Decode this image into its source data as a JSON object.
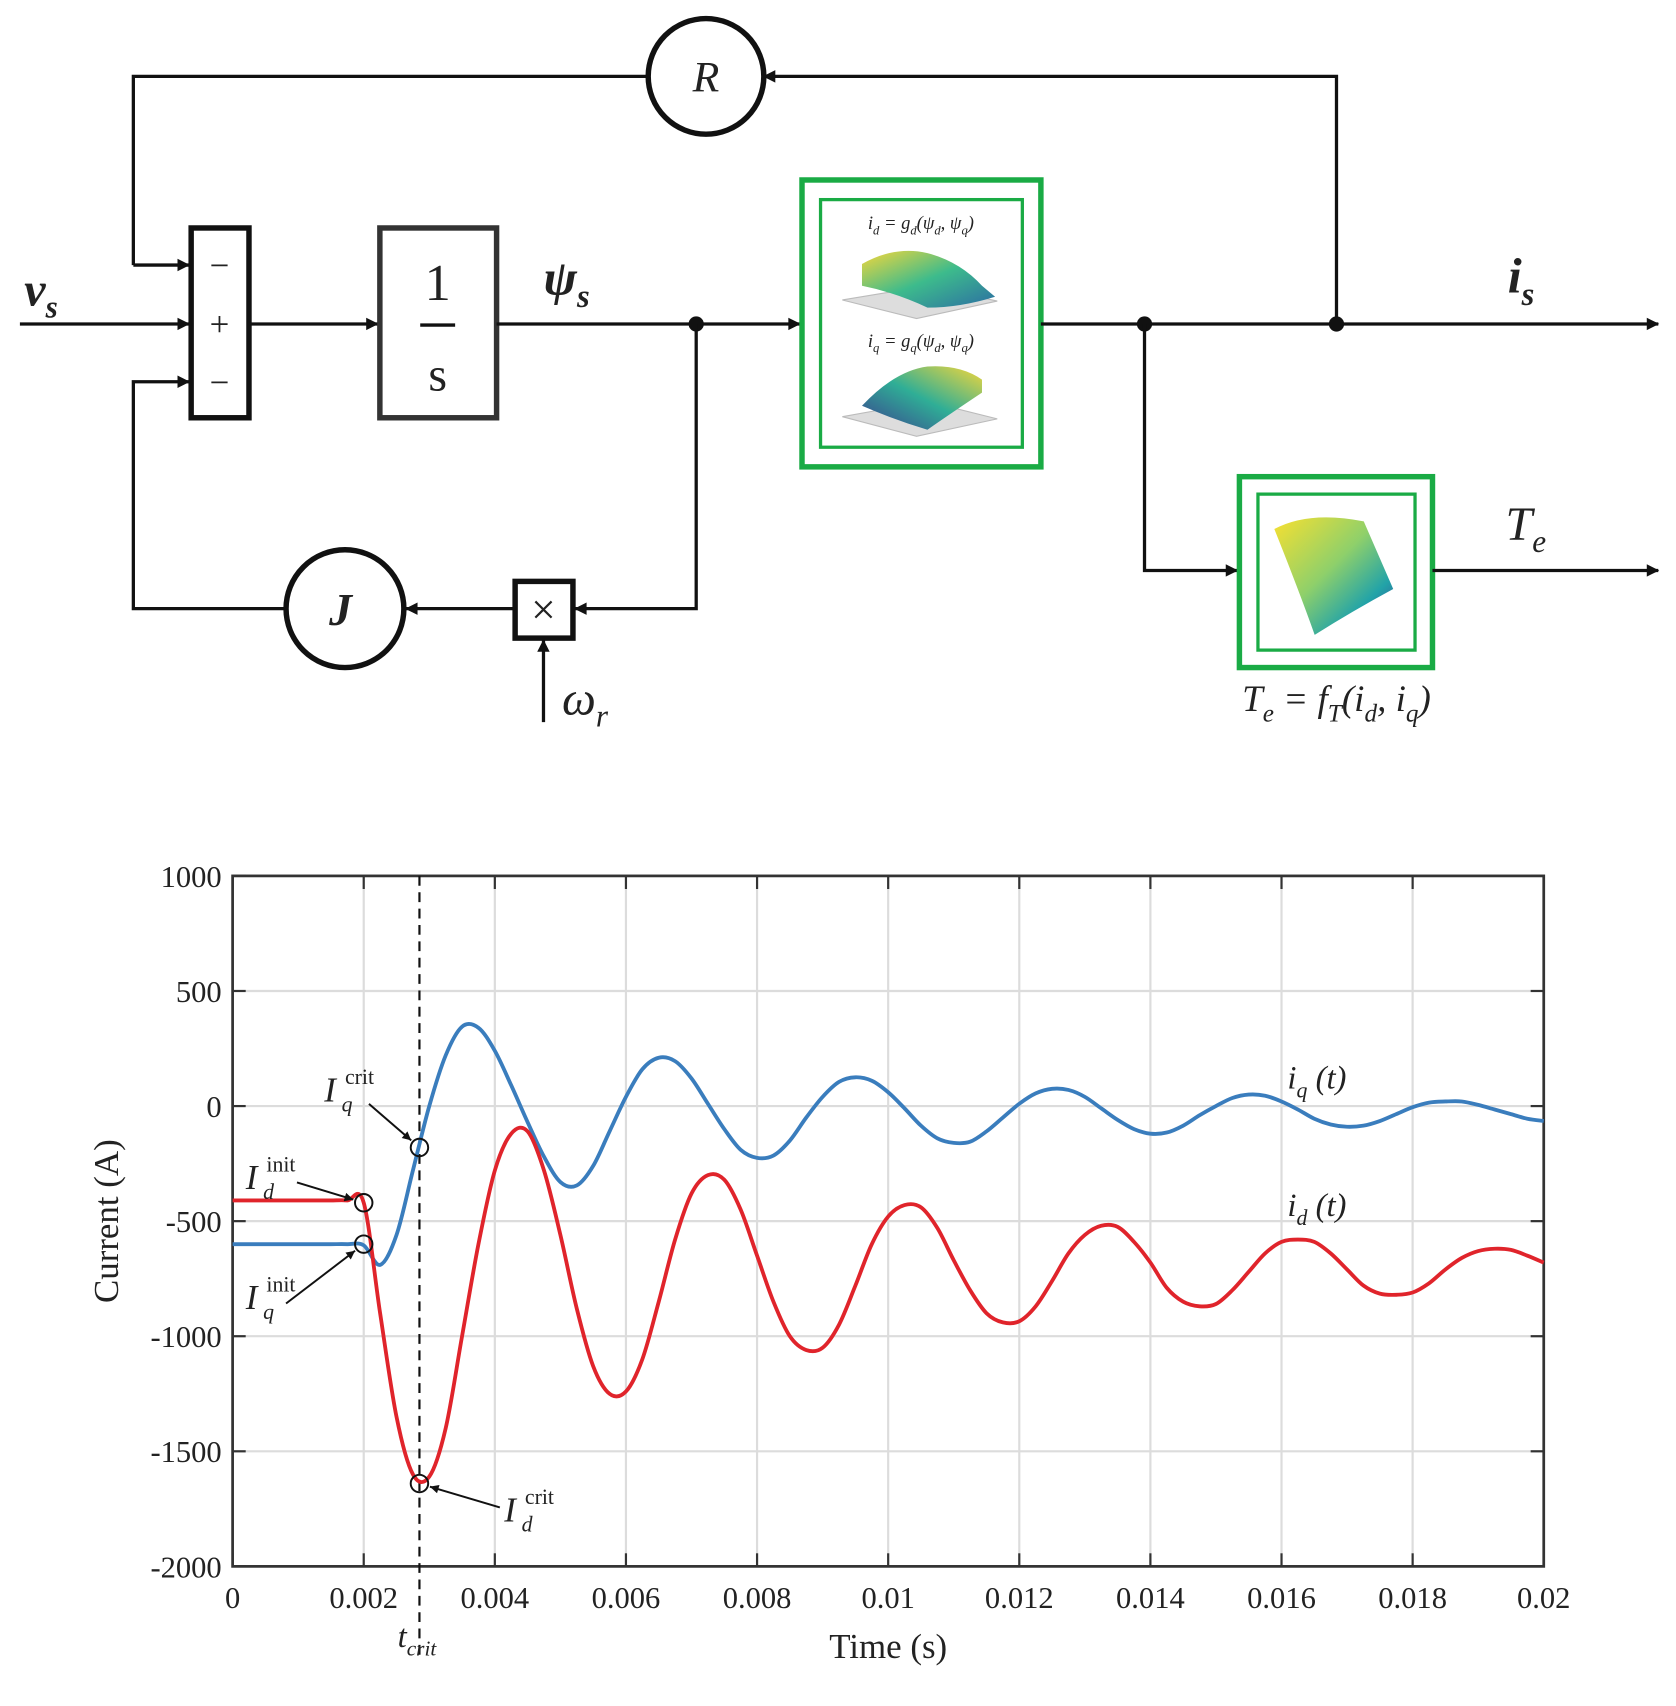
{
  "diagram": {
    "labels": {
      "vs": {
        "t": "v",
        "s": "s"
      },
      "psis": {
        "t": "ψ",
        "s": "s"
      },
      "is": {
        "t": "i",
        "s": "s"
      },
      "Te": {
        "t": "T",
        "s": "e"
      },
      "wr": {
        "t": "ω",
        "s": "r"
      }
    },
    "blocks": {
      "R": "R",
      "J": "J",
      "num": "1",
      "den": "s",
      "mul": "×",
      "signs": [
        "−",
        "+",
        "−"
      ]
    },
    "maps": [
      [
        {
          "t": "i"
        },
        {
          "s": "d"
        },
        {
          "t": " = g"
        },
        {
          "s": "d"
        },
        {
          "t": "(ψ"
        },
        {
          "s": "d"
        },
        {
          "t": ", ψ"
        },
        {
          "s": "q"
        },
        {
          "t": ")"
        }
      ],
      [
        {
          "t": "i"
        },
        {
          "s": "q"
        },
        {
          "t": " = g"
        },
        {
          "s": "q"
        },
        {
          "t": "(ψ"
        },
        {
          "s": "d"
        },
        {
          "t": ", ψ"
        },
        {
          "s": "q"
        },
        {
          "t": ")"
        }
      ],
      [
        {
          "t": "T"
        },
        {
          "s": "e"
        },
        {
          "t": " = f"
        },
        {
          "s": "T"
        },
        {
          "t": "(i"
        },
        {
          "s": "d"
        },
        {
          "t": ", i"
        },
        {
          "s": "q"
        },
        {
          "t": ")"
        }
      ]
    ]
  },
  "chart_data": {
    "type": "line",
    "xlabel": "Time (s)",
    "ylabel": "Current (A)",
    "xlim": [
      0,
      0.02
    ],
    "ylim": [
      -2000,
      1000
    ],
    "xticks": [
      0,
      0.002,
      0.004,
      0.006,
      0.008,
      0.01,
      0.012,
      0.014,
      0.016,
      0.018,
      0.02
    ],
    "yticks": [
      -2000,
      -1500,
      -1000,
      -500,
      0,
      500,
      1000
    ],
    "grid": true,
    "x": [
      0,
      0.00025,
      0.0005,
      0.00075,
      0.001,
      0.00125,
      0.0015,
      0.00175,
      0.002,
      0.00225,
      0.0025,
      0.00275,
      0.003,
      0.00325,
      0.0035,
      0.00375,
      0.004,
      0.00425,
      0.0045,
      0.00475,
      0.005,
      0.00525,
      0.0055,
      0.00575,
      0.006,
      0.00625,
      0.0065,
      0.00675,
      0.007,
      0.00725,
      0.0075,
      0.00775,
      0.008,
      0.00825,
      0.0085,
      0.00875,
      0.009,
      0.00925,
      0.0095,
      0.00975,
      0.01,
      0.01025,
      0.0105,
      0.01075,
      0.011,
      0.01125,
      0.0115,
      0.01175,
      0.012,
      0.01225,
      0.0125,
      0.01275,
      0.013,
      0.01325,
      0.0135,
      0.01375,
      0.014,
      0.01425,
      0.0145,
      0.01475,
      0.015,
      0.01525,
      0.0155,
      0.01575,
      0.016,
      0.01625,
      0.0165,
      0.01675,
      0.017,
      0.01725,
      0.0175,
      0.01775,
      0.018,
      0.01825,
      0.0185,
      0.01875,
      0.019,
      0.01925,
      0.0195,
      0.01975,
      0.02
    ],
    "series": [
      {
        "name": "i",
        "sub": "q",
        "arg": " (t)",
        "color": "#3a7dbd",
        "values": [
          -600,
          -600,
          -600,
          -600,
          -600,
          -600,
          -600,
          -600,
          -605,
          -690,
          -560,
          -280,
          0,
          220,
          345,
          340,
          240,
          90,
          -70,
          -220,
          -330,
          -345,
          -260,
          -110,
          40,
          160,
          210,
          195,
          120,
          10,
          -100,
          -190,
          -225,
          -215,
          -150,
          -50,
          40,
          105,
          125,
          110,
          60,
          -10,
          -85,
          -140,
          -160,
          -155,
          -110,
          -50,
          10,
          55,
          75,
          70,
          40,
          -10,
          -60,
          -100,
          -120,
          -115,
          -85,
          -40,
          0,
          35,
          50,
          45,
          20,
          -15,
          -55,
          -80,
          -90,
          -85,
          -65,
          -35,
          -5,
          15,
          20,
          20,
          5,
          -15,
          -35,
          -55,
          -65
        ]
      },
      {
        "name": "i",
        "sub": "d",
        "arg": " (t)",
        "color": "#e0242b",
        "values": [
          -410,
          -410,
          -410,
          -410,
          -410,
          -410,
          -410,
          -410,
          -420,
          -900,
          -1350,
          -1600,
          -1610,
          -1400,
          -1000,
          -600,
          -280,
          -120,
          -110,
          -280,
          -560,
          -880,
          -1130,
          -1250,
          -1240,
          -1100,
          -850,
          -580,
          -380,
          -300,
          -320,
          -450,
          -650,
          -850,
          -1000,
          -1060,
          -1050,
          -950,
          -780,
          -600,
          -480,
          -430,
          -440,
          -530,
          -670,
          -800,
          -900,
          -940,
          -935,
          -870,
          -760,
          -640,
          -560,
          -520,
          -525,
          -590,
          -680,
          -790,
          -850,
          -870,
          -860,
          -800,
          -720,
          -640,
          -590,
          -580,
          -590,
          -640,
          -710,
          -780,
          -815,
          -820,
          -810,
          -770,
          -710,
          -660,
          -630,
          -620,
          -625,
          -650,
          -680
        ]
      }
    ],
    "annotations": [
      {
        "t": "I",
        "s": "q",
        "sup": "crit",
        "x": 0.00285,
        "y": -180
      },
      {
        "t": "I",
        "s": "d",
        "sup": "init",
        "x": 0.002,
        "y": -420
      },
      {
        "t": "I",
        "s": "q",
        "sup": "init",
        "x": 0.002,
        "y": -600
      },
      {
        "t": "I",
        "s": "d",
        "sup": "crit",
        "x": 0.00285,
        "y": -1640
      }
    ],
    "vline": {
      "x": 0.00285,
      "t": "t",
      "s": "crit"
    }
  }
}
